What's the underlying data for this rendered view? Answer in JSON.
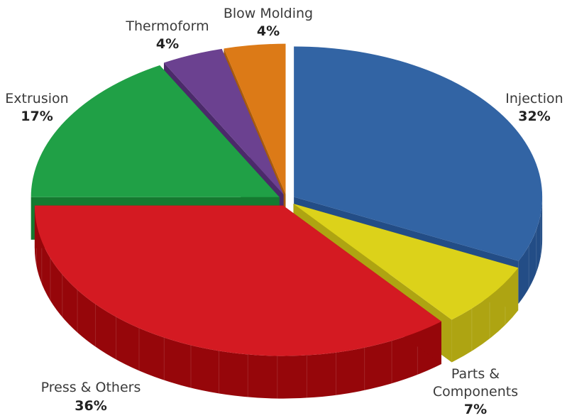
{
  "chart_data": {
    "type": "pie",
    "title": "",
    "three_d": true,
    "exploded": true,
    "series": [
      {
        "name": "Injection",
        "value": 32,
        "label_value": "32%",
        "color": "#3264a4",
        "side_color": "#234d86"
      },
      {
        "name": "Parts & Components",
        "label_lines": [
          "Parts &",
          "Components"
        ],
        "value": 7,
        "label_value": "7%",
        "color": "#dcd21a",
        "side_color": "#aea412"
      },
      {
        "name": "Press & Others",
        "value": 36,
        "label_value": "36%",
        "color": "#d41a22",
        "side_color": "#96060a"
      },
      {
        "name": "Extrusion",
        "value": 17,
        "label_value": "17%",
        "color": "#20a046",
        "side_color": "#157a30"
      },
      {
        "name": "Thermoform",
        "value": 4,
        "label_value": "4%",
        "color": "#6b4190",
        "side_color": "#4b2a6a"
      },
      {
        "name": "Blow Molding",
        "value": 4,
        "label_value": "4%",
        "color": "#dc7a17",
        "side_color": "#a85a0c"
      }
    ]
  }
}
